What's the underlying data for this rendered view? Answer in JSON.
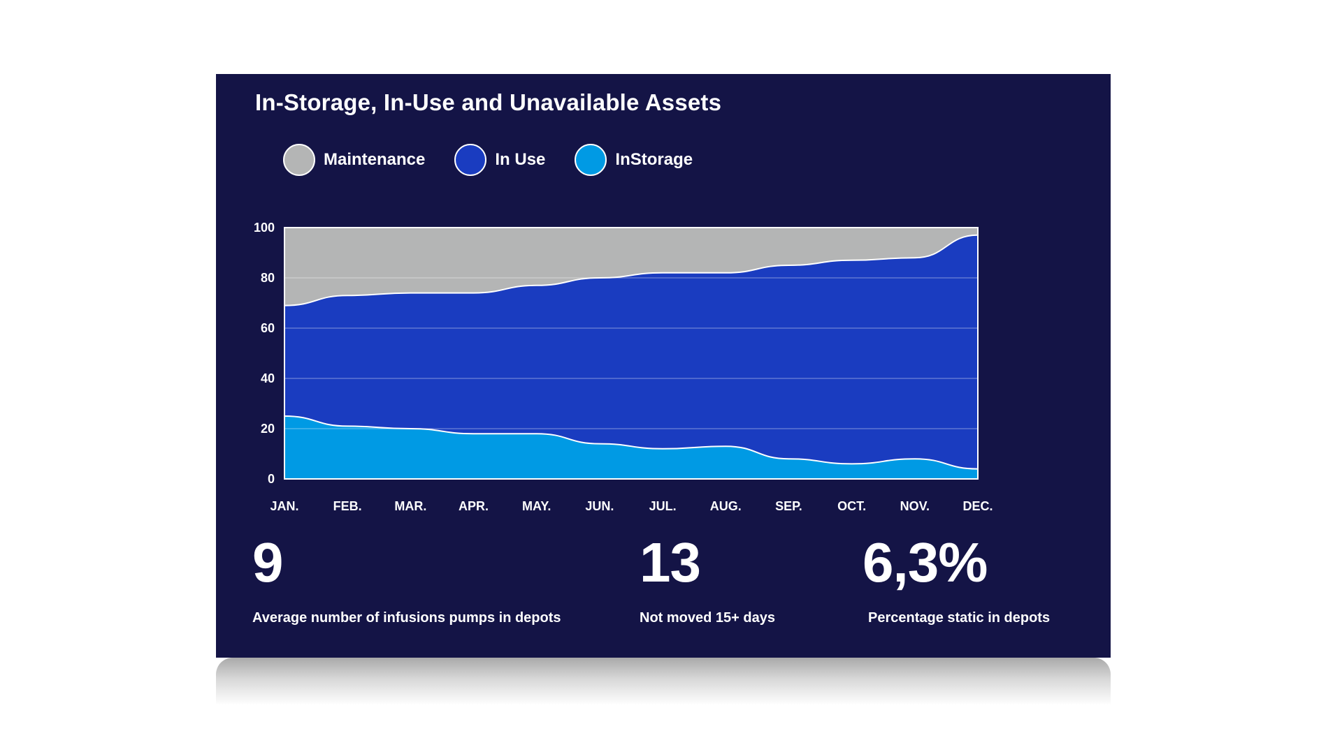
{
  "colors": {
    "background": "#141446",
    "maintenance": "#b4b5b5",
    "in_use": "#1a3cc0",
    "in_storage": "#009ae4",
    "grid": "#ffffff",
    "text": "#ffffff"
  },
  "chart_data": {
    "type": "area",
    "stacked": true,
    "title": "In-Storage, In-Use and Unavailable Assets",
    "xlabel": "",
    "ylabel": "",
    "ylim": [
      0,
      100
    ],
    "yticks": [
      0,
      20,
      40,
      60,
      80,
      100
    ],
    "grid": true,
    "legend_position": "top-left",
    "categories": [
      "JAN.",
      "FEB.",
      "MAR.",
      "APR.",
      "MAY.",
      "JUN.",
      "JUL.",
      "AUG.",
      "SEP.",
      "OCT.",
      "NOV.",
      "DEC."
    ],
    "series": [
      {
        "name": "Maintenance",
        "color_key": "maintenance",
        "values": [
          31,
          27,
          26,
          26,
          23,
          20,
          18,
          18,
          15,
          13,
          12,
          3
        ]
      },
      {
        "name": "In Use",
        "color_key": "in_use",
        "values": [
          44,
          52,
          54,
          56,
          59,
          66,
          70,
          69,
          77,
          81,
          80,
          93
        ]
      },
      {
        "name": "InStorage",
        "color_key": "in_storage",
        "values": [
          25,
          21,
          20,
          18,
          18,
          14,
          12,
          13,
          8,
          6,
          8,
          4
        ]
      }
    ]
  },
  "kpis": [
    {
      "value": "9",
      "label": "Average number of infusions pumps in depots"
    },
    {
      "value": "13",
      "label": "Not moved 15+ days"
    },
    {
      "value": "6,3%",
      "label": "Percentage static in depots"
    }
  ]
}
